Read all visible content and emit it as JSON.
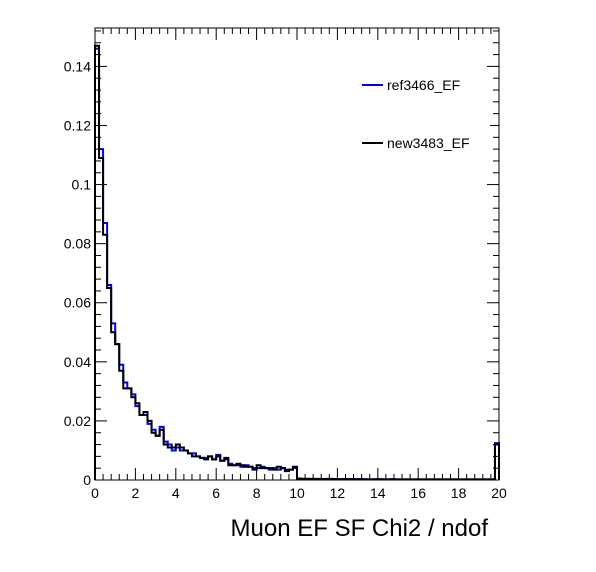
{
  "chart_data": {
    "type": "line",
    "title": "",
    "xlabel": "Muon EF SF Chi2 / ndof",
    "ylabel": "",
    "xlim": [
      0,
      20
    ],
    "ylim": [
      0,
      0.153
    ],
    "x_ticks": [
      0,
      2,
      4,
      6,
      8,
      10,
      12,
      14,
      16,
      18,
      20
    ],
    "y_ticks": [
      0,
      0.02,
      0.04,
      0.06,
      0.08,
      0.1,
      0.12,
      0.14
    ],
    "y_tick_labels": [
      "0",
      "0.02",
      "0.04",
      "0.06",
      "0.08",
      "0.1",
      "0.12",
      "0.14"
    ],
    "grid": false,
    "legend_position": "top-right",
    "bin_width": 0.2,
    "x": [
      0.0,
      0.2,
      0.4,
      0.6,
      0.8,
      1.0,
      1.2,
      1.4,
      1.6,
      1.8,
      2.0,
      2.2,
      2.4,
      2.6,
      2.8,
      3.0,
      3.2,
      3.4,
      3.6,
      3.8,
      4.0,
      4.2,
      4.4,
      4.6,
      4.8,
      5.0,
      5.2,
      5.4,
      5.6,
      5.8,
      6.0,
      6.2,
      6.4,
      6.6,
      6.8,
      7.0,
      7.2,
      7.4,
      7.6,
      7.8,
      8.0,
      8.2,
      8.4,
      8.6,
      8.8,
      9.0,
      9.2,
      9.4,
      9.6,
      9.8,
      10.0,
      10.2,
      10.4,
      10.6,
      10.8,
      11.0,
      11.2,
      11.4,
      11.6,
      11.8,
      12.0,
      12.2,
      12.4,
      12.6,
      12.8,
      13.0,
      13.2,
      13.4,
      13.6,
      13.8,
      14.0,
      14.2,
      14.4,
      14.6,
      14.8,
      15.0,
      15.2,
      15.4,
      15.6,
      15.8,
      16.0,
      16.2,
      16.4,
      16.6,
      16.8,
      17.0,
      17.2,
      17.4,
      17.6,
      17.8,
      18.0,
      18.2,
      18.4,
      18.6,
      18.8,
      19.0,
      19.2,
      19.4,
      19.6,
      19.8
    ],
    "series": [
      {
        "name": "ref3466_EF",
        "color": "#0000ee",
        "values": [
          0.146,
          0.112,
          0.087,
          0.066,
          0.053,
          0.046,
          0.039,
          0.033,
          0.031,
          0.029,
          0.025,
          0.022,
          0.022,
          0.019,
          0.017,
          0.015,
          0.018,
          0.013,
          0.012,
          0.01,
          0.011,
          0.01,
          0.01,
          0.009,
          0.009,
          0.008,
          0.0075,
          0.0075,
          0.008,
          0.007,
          0.0085,
          0.0065,
          0.007,
          0.0055,
          0.005,
          0.005,
          0.0045,
          0.005,
          0.0045,
          0.004,
          0.004,
          0.0045,
          0.004,
          0.0035,
          0.004,
          0.0035,
          0.004,
          0.0035,
          0.0035,
          0.004,
          0.0005,
          0.0004,
          0.0004,
          0.0004,
          0.0003,
          0.0004,
          0.0003,
          0.0004,
          0.0003,
          0.0003,
          0.0003,
          0.0003,
          0.0003,
          0.0002,
          0.0003,
          0.0002,
          0.0003,
          0.0002,
          0.0002,
          0.0003,
          0.0002,
          0.0002,
          0.0002,
          0.0003,
          0.0002,
          0.0002,
          0.0002,
          0.0002,
          0.0002,
          0.0002,
          0.0002,
          0.0002,
          0.0002,
          0.0002,
          0.0002,
          0.0002,
          0.0002,
          0.0002,
          0.0002,
          0.0002,
          0.0002,
          0.0002,
          0.0002,
          0.0002,
          0.0002,
          0.0002,
          0.0002,
          0.0002,
          0.0002,
          0.0125
        ]
      },
      {
        "name": "new3483_EF",
        "color": "#000000",
        "values": [
          0.147,
          0.109,
          0.083,
          0.065,
          0.05,
          0.046,
          0.037,
          0.031,
          0.031,
          0.028,
          0.026,
          0.022,
          0.023,
          0.02,
          0.016,
          0.015,
          0.017,
          0.012,
          0.011,
          0.011,
          0.012,
          0.011,
          0.01,
          0.009,
          0.008,
          0.008,
          0.0075,
          0.007,
          0.008,
          0.007,
          0.008,
          0.0065,
          0.0075,
          0.005,
          0.005,
          0.0055,
          0.005,
          0.0045,
          0.0045,
          0.0035,
          0.005,
          0.004,
          0.004,
          0.004,
          0.0035,
          0.0045,
          0.004,
          0.003,
          0.0035,
          0.0045,
          0.0005,
          0.0004,
          0.0004,
          0.0003,
          0.0004,
          0.0003,
          0.0003,
          0.0003,
          0.0004,
          0.0003,
          0.0003,
          0.0002,
          0.0003,
          0.0003,
          0.0002,
          0.0003,
          0.0002,
          0.0002,
          0.0002,
          0.0002,
          0.0003,
          0.0002,
          0.0002,
          0.0002,
          0.0002,
          0.0002,
          0.0002,
          0.0002,
          0.0002,
          0.0002,
          0.0002,
          0.0002,
          0.0002,
          0.0002,
          0.0002,
          0.0002,
          0.0002,
          0.0002,
          0.0002,
          0.0002,
          0.0002,
          0.0002,
          0.0002,
          0.0002,
          0.0002,
          0.0002,
          0.0002,
          0.0002,
          0.0002,
          0.012
        ]
      }
    ]
  }
}
